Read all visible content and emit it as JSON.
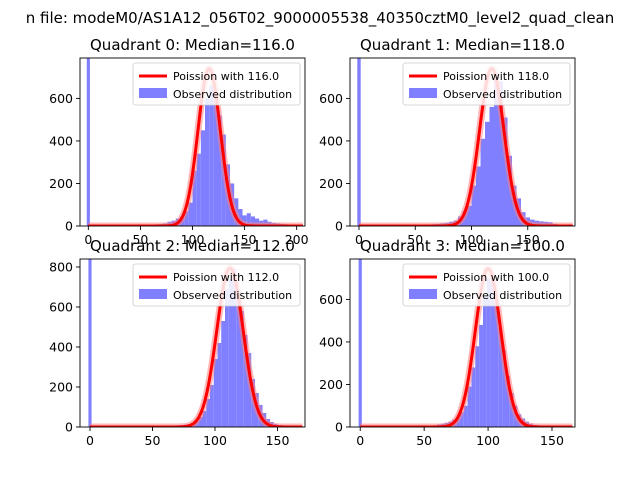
{
  "figure": {
    "suptitle": "n file: modeM0/AS1A12_056T02_9000005538_40350cztM0_level2_quad_clean"
  },
  "colors": {
    "bar": "#7f7fff",
    "line": "#ff0000",
    "line_glow": "#ff8080",
    "axis": "#000000"
  },
  "chart_data": [
    {
      "type": "bar",
      "title": "Quadrant 0: Median=116.0",
      "median": 116.0,
      "xlim": [
        -8,
        208
      ],
      "ylim": [
        0,
        790
      ],
      "xticks": [
        0,
        50,
        100,
        150,
        200
      ],
      "yticks": [
        0,
        200,
        400,
        600
      ],
      "bin_width": 4,
      "legend": {
        "line_label": "Poission with 116.0",
        "hist_label": "Observed distribution",
        "placement": "top-right"
      },
      "spike": {
        "x": 0,
        "width": 3,
        "height": 790
      },
      "hist": [
        [
          64,
          8
        ],
        [
          68,
          10
        ],
        [
          72,
          12
        ],
        [
          76,
          20
        ],
        [
          80,
          25
        ],
        [
          84,
          35
        ],
        [
          88,
          45
        ],
        [
          92,
          70
        ],
        [
          96,
          110
        ],
        [
          100,
          260
        ],
        [
          104,
          340
        ],
        [
          108,
          450
        ],
        [
          112,
          600
        ],
        [
          116,
          660
        ],
        [
          120,
          640
        ],
        [
          124,
          520
        ],
        [
          128,
          430
        ],
        [
          132,
          290
        ],
        [
          136,
          200
        ],
        [
          140,
          130
        ],
        [
          144,
          80
        ],
        [
          148,
          50
        ],
        [
          152,
          60
        ],
        [
          156,
          45
        ],
        [
          160,
          35
        ],
        [
          164,
          25
        ],
        [
          168,
          30
        ],
        [
          172,
          20
        ],
        [
          176,
          15
        ],
        [
          180,
          12
        ],
        [
          184,
          10
        ],
        [
          188,
          8
        ],
        [
          192,
          5
        ]
      ],
      "poisson_peak": 740
    },
    {
      "type": "bar",
      "title": "Quadrant 1: Median=118.0",
      "median": 118.0,
      "xlim": [
        -8,
        192
      ],
      "ylim": [
        0,
        790
      ],
      "xticks": [
        0,
        50,
        100,
        150
      ],
      "yticks": [
        0,
        200,
        400,
        600
      ],
      "bin_width": 4,
      "legend": {
        "line_label": "Poission with 118.0",
        "hist_label": "Observed distribution",
        "placement": "top-right"
      },
      "spike": {
        "x": 0,
        "width": 3,
        "height": 790
      },
      "hist": [
        [
          60,
          5
        ],
        [
          64,
          8
        ],
        [
          68,
          10
        ],
        [
          72,
          12
        ],
        [
          76,
          15
        ],
        [
          80,
          20
        ],
        [
          84,
          25
        ],
        [
          88,
          45
        ],
        [
          92,
          70
        ],
        [
          96,
          95
        ],
        [
          100,
          190
        ],
        [
          104,
          280
        ],
        [
          108,
          410
        ],
        [
          112,
          490
        ],
        [
          116,
          560
        ],
        [
          120,
          720
        ],
        [
          124,
          680
        ],
        [
          128,
          510
        ],
        [
          132,
          330
        ],
        [
          136,
          190
        ],
        [
          140,
          130
        ],
        [
          144,
          65
        ],
        [
          148,
          40
        ],
        [
          152,
          30
        ],
        [
          156,
          25
        ],
        [
          160,
          22
        ],
        [
          164,
          20
        ],
        [
          168,
          18
        ],
        [
          172,
          10
        ],
        [
          176,
          6
        ]
      ],
      "poisson_peak": 740
    },
    {
      "type": "bar",
      "title": "Quadrant 2: Median=112.0",
      "median": 112.0,
      "xlim": [
        -8,
        172
      ],
      "ylim": [
        0,
        840
      ],
      "xticks": [
        0,
        50,
        100,
        150
      ],
      "yticks": [
        0,
        200,
        400,
        600,
        800
      ],
      "bin_width": 3,
      "legend": {
        "line_label": "Poission with 112.0",
        "hist_label": "Observed distribution",
        "placement": "top-right"
      },
      "spike": {
        "x": 0,
        "width": 2.5,
        "height": 840
      },
      "hist": [
        [
          63,
          5
        ],
        [
          66,
          6
        ],
        [
          69,
          8
        ],
        [
          72,
          10
        ],
        [
          75,
          12
        ],
        [
          78,
          15
        ],
        [
          81,
          20
        ],
        [
          84,
          30
        ],
        [
          87,
          50
        ],
        [
          90,
          80
        ],
        [
          93,
          140
        ],
        [
          96,
          210
        ],
        [
          99,
          340
        ],
        [
          102,
          420
        ],
        [
          105,
          530
        ],
        [
          108,
          690
        ],
        [
          111,
          740
        ],
        [
          114,
          790
        ],
        [
          117,
          680
        ],
        [
          120,
          580
        ],
        [
          123,
          460
        ],
        [
          126,
          370
        ],
        [
          129,
          240
        ],
        [
          132,
          170
        ],
        [
          135,
          110
        ],
        [
          138,
          70
        ],
        [
          141,
          40
        ],
        [
          144,
          25
        ],
        [
          147,
          15
        ],
        [
          150,
          10
        ],
        [
          153,
          8
        ],
        [
          156,
          5
        ]
      ],
      "poisson_peak": 795
    },
    {
      "type": "bar",
      "title": "Quadrant 3: Median=100.0",
      "median": 100.0,
      "xlim": [
        -8,
        168
      ],
      "ylim": [
        0,
        790
      ],
      "xticks": [
        0,
        50,
        100,
        150
      ],
      "yticks": [
        0,
        200,
        400,
        600
      ],
      "bin_width": 3,
      "legend": {
        "line_label": "Poission with 100.0",
        "hist_label": "Observed distribution",
        "placement": "top-right"
      },
      "spike": {
        "x": 0,
        "width": 2.5,
        "height": 790
      },
      "hist": [
        [
          54,
          5
        ],
        [
          57,
          8
        ],
        [
          60,
          12
        ],
        [
          63,
          15
        ],
        [
          66,
          20
        ],
        [
          69,
          25
        ],
        [
          72,
          35
        ],
        [
          75,
          45
        ],
        [
          78,
          70
        ],
        [
          81,
          100
        ],
        [
          84,
          190
        ],
        [
          87,
          280
        ],
        [
          90,
          380
        ],
        [
          93,
          480
        ],
        [
          96,
          620
        ],
        [
          99,
          700
        ],
        [
          102,
          690
        ],
        [
          105,
          600
        ],
        [
          108,
          470
        ],
        [
          111,
          360
        ],
        [
          114,
          240
        ],
        [
          117,
          160
        ],
        [
          120,
          100
        ],
        [
          123,
          60
        ],
        [
          126,
          40
        ],
        [
          129,
          25
        ],
        [
          132,
          15
        ],
        [
          135,
          10
        ],
        [
          138,
          8
        ],
        [
          141,
          6
        ],
        [
          144,
          5
        ],
        [
          147,
          4
        ],
        [
          150,
          3
        ],
        [
          153,
          3
        ],
        [
          156,
          3
        ]
      ],
      "poisson_peak": 745
    }
  ]
}
